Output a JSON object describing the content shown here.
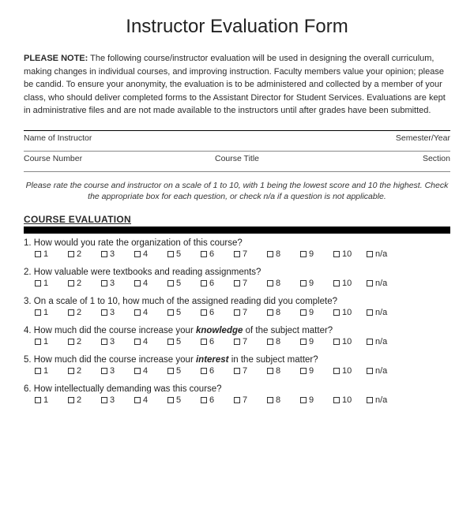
{
  "title": "Instructor Evaluation Form",
  "note_label": "PLEASE NOTE:",
  "note_text": "The following course/instructor evaluation will be used in designing the overall curriculum, making changes in individual courses, and improving instruction. Faculty members value your opinion; please be candid. To ensure your anonymity, the evaluation is to be administered and collected by a member of your class, who should deliver completed forms to the Assistant Director for Student Services. Evaluations are kept in administrative files and are not made available to the instructors until after grades have been submitted.",
  "fields": {
    "instructor": "Name of Instructor",
    "semester": "Semester/Year",
    "course_number": "Course Number",
    "course_title": "Course Title",
    "section": "Section"
  },
  "instructions": "Please rate the course and instructor on a scale of 1 to 10, with 1 being the lowest score and 10 the highest. Check the appropriate box for each question, or check n/a if a question is not applicable.",
  "section_header": "COURSE EVALUATION",
  "scale_options": [
    "1",
    "2",
    "3",
    "4",
    "5",
    "6",
    "7",
    "8",
    "9",
    "10",
    "n/a"
  ],
  "questions": [
    {
      "n": "1",
      "pre": "How would you rate the organization of this course?",
      "em": "",
      "post": ""
    },
    {
      "n": "2",
      "pre": "How valuable were textbooks and reading assignments?",
      "em": "",
      "post": ""
    },
    {
      "n": "3",
      "pre": "On a scale of 1 to 10, how much of the assigned reading did you complete?",
      "em": "",
      "post": ""
    },
    {
      "n": "4",
      "pre": "How much did the course increase your ",
      "em": "knowledge",
      "post": " of the subject matter?"
    },
    {
      "n": "5",
      "pre": "How much did the course increase your ",
      "em": "interest",
      "post": " in the subject matter?"
    },
    {
      "n": "6",
      "pre": "How intellectually demanding was this course?",
      "em": "",
      "post": ""
    }
  ]
}
